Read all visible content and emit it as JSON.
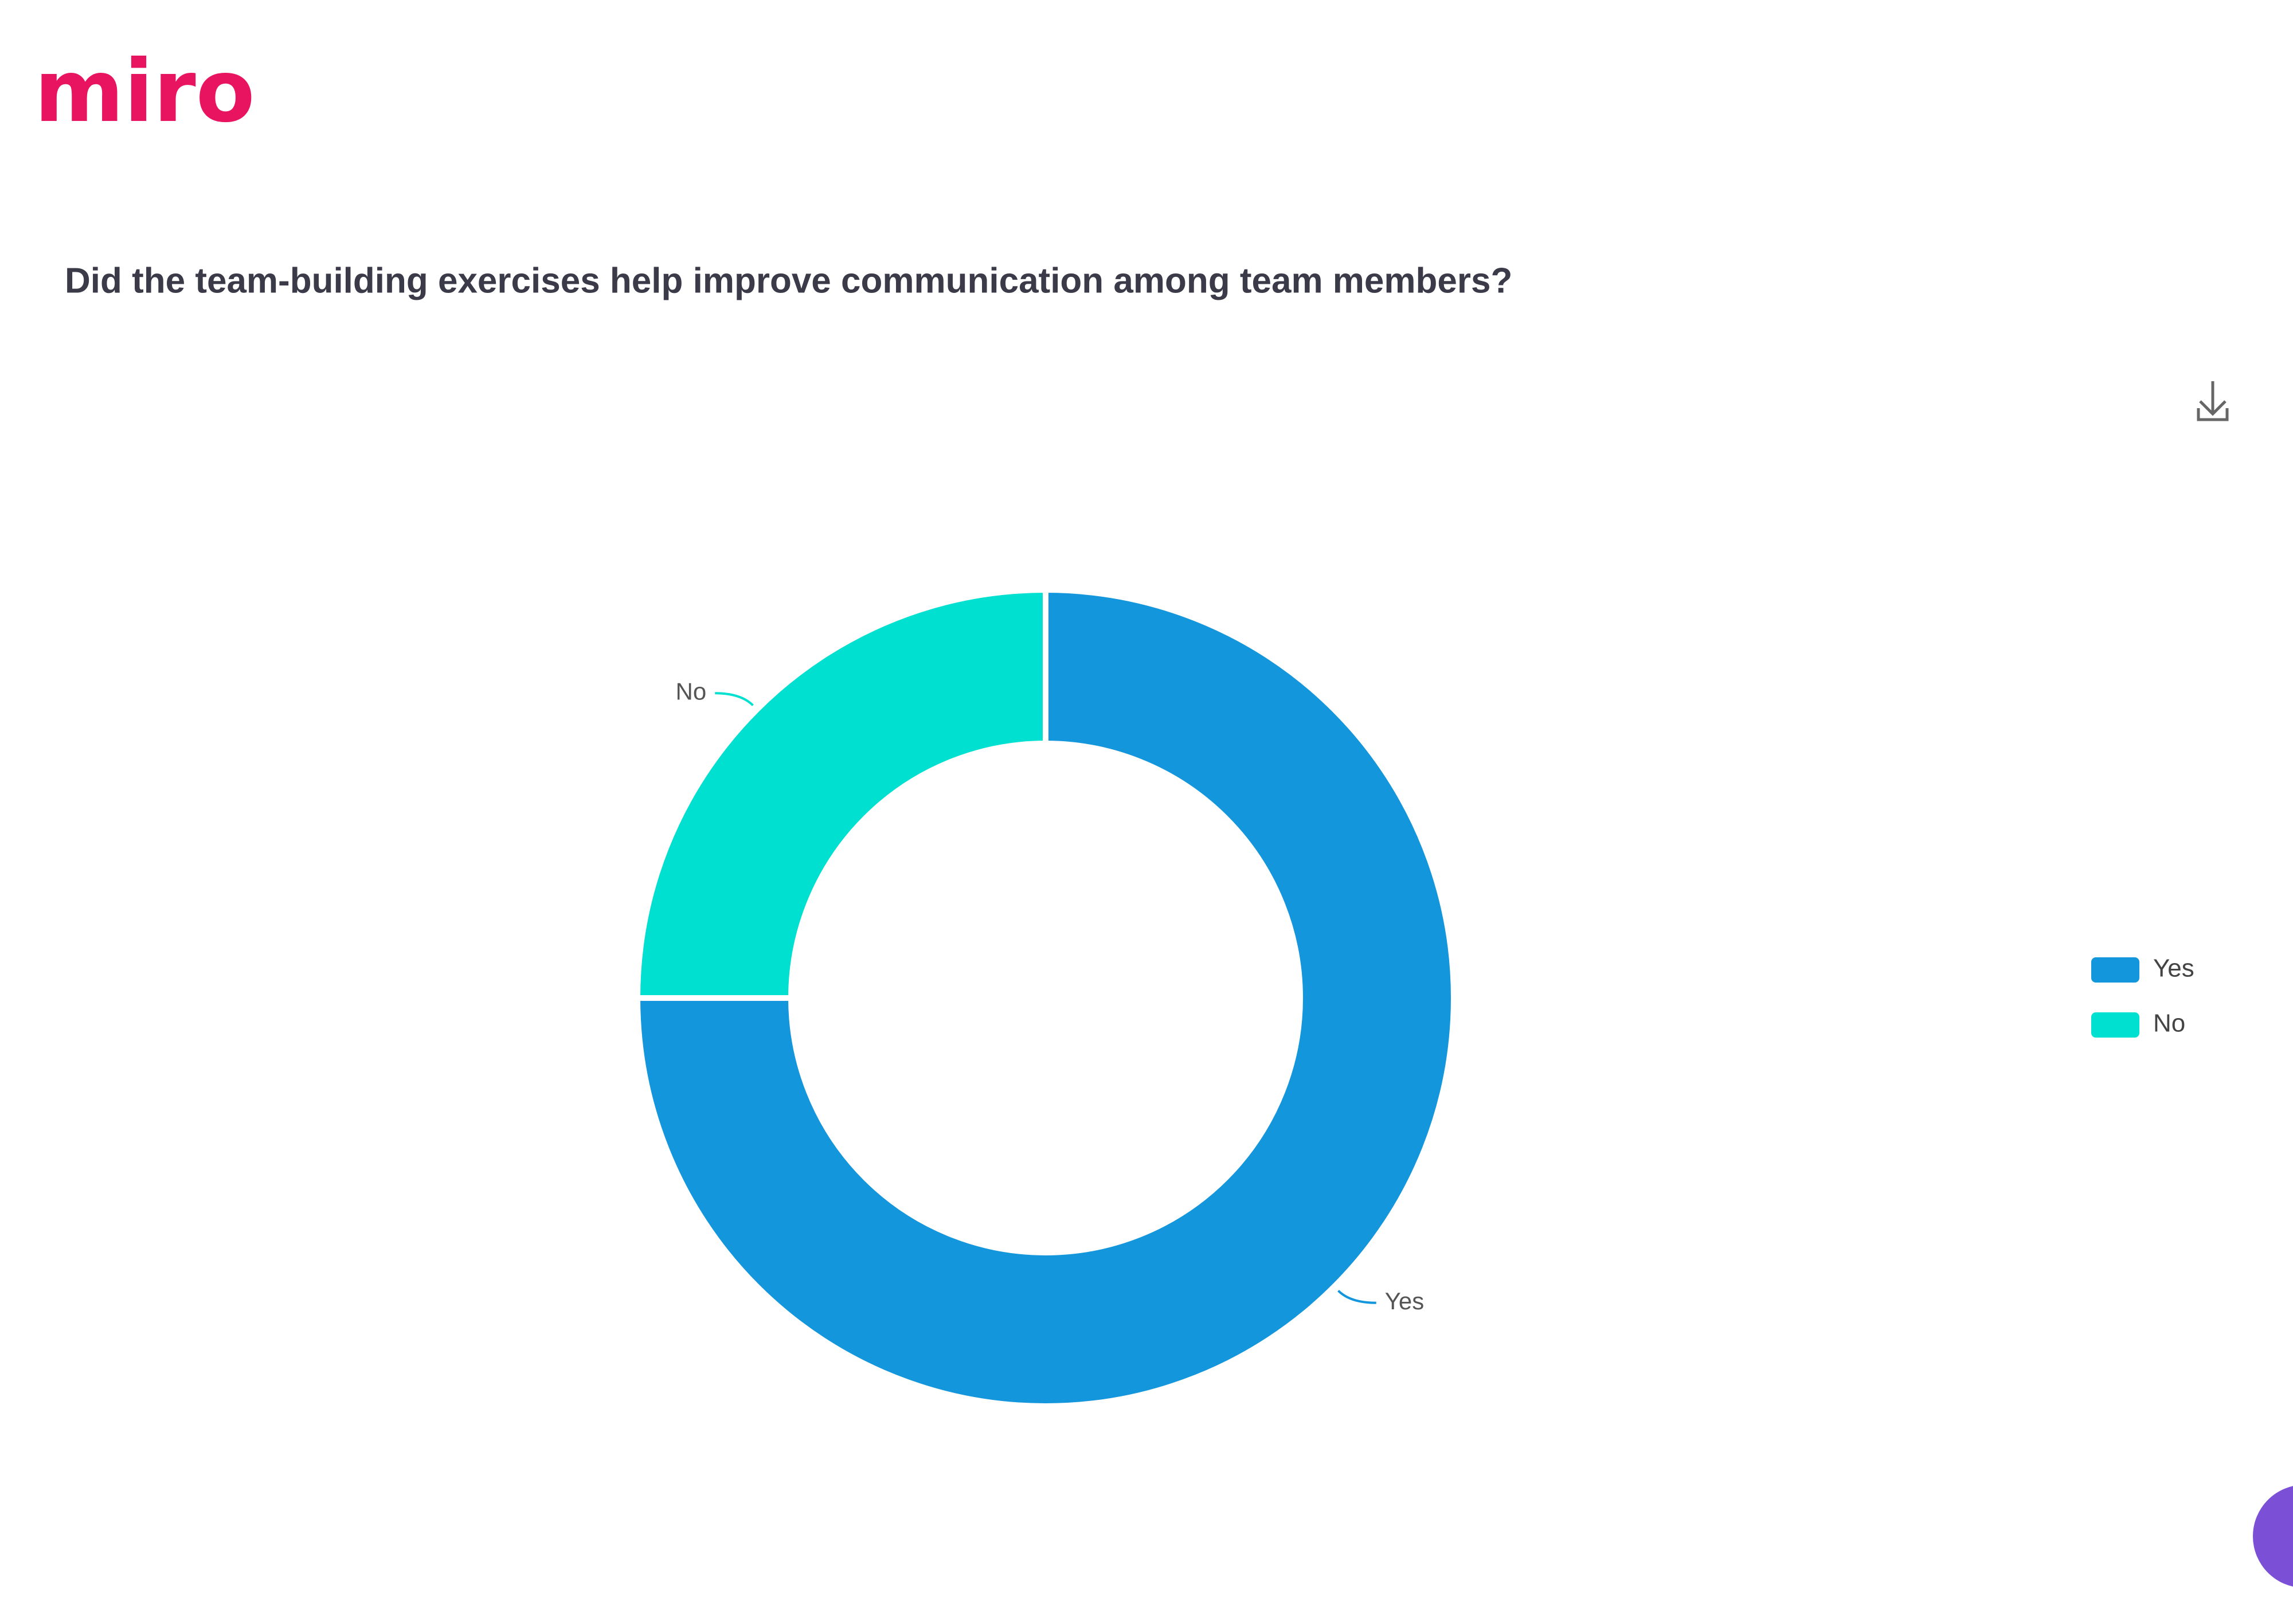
{
  "logo": "miro",
  "chart_data": {
    "type": "donut",
    "title": "Did the team-building exercises help improve communication among team members?",
    "categories": [
      "Yes",
      "No"
    ],
    "values": [
      75,
      25
    ],
    "colors": [
      "#1496dc",
      "#00e0d0"
    ],
    "legend": "right"
  }
}
